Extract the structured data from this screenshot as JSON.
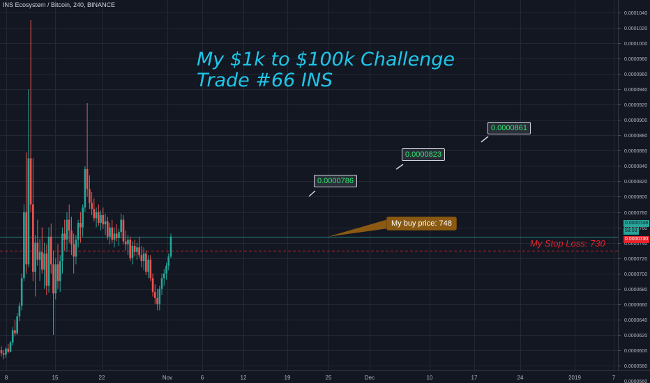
{
  "chart_data": {
    "type": "candlestick",
    "title": "INS Ecosystem / Bitcoin, 240, BINANCE",
    "headline": [
      "My $1k to $100k Challenge",
      "Trade #66   INS"
    ],
    "x_ticks": [
      "8",
      "15",
      "22",
      "Nov",
      "6",
      "12",
      "19",
      "25",
      "Dec",
      "10",
      "17",
      "24",
      "2019",
      "7"
    ],
    "y_ticks": [
      "0.0000560",
      "0.0000580",
      "0.0000600",
      "0.0000620",
      "0.0000640",
      "0.0000660",
      "0.0000680",
      "0.0000700",
      "0.0000720",
      "0.0000740",
      "0.0000760",
      "0.0000780",
      "0.0000800",
      "0.0000820",
      "0.0000840",
      "0.0000860",
      "0.0000880",
      "0.0000900",
      "0.0000920",
      "0.0000940",
      "0.0000960",
      "0.0000980",
      "0.0001000",
      "0.0001020",
      "0.0001040"
    ],
    "ylim": [
      5.48e-05,
      0.0001058
    ],
    "targets": [
      {
        "label": "0.0000786",
        "value": 7.86e-05
      },
      {
        "label": "0.0000823",
        "value": 8.23e-05
      },
      {
        "label": "0.0000861",
        "value": 8.61e-05
      }
    ],
    "buy": {
      "text": "My buy price:  748",
      "value": 7.48e-05
    },
    "stop": {
      "text": "My Stop Loss:  730",
      "value": 7.3e-05
    },
    "last_price_tag": "0.0000748",
    "countdown": "58:03",
    "stop_tag": "0.0000730",
    "colors": {
      "up": "#26a69a",
      "down": "#ef5350",
      "headline": "#1ec6e8",
      "target_text": "#2ee86e",
      "buy_box": "#8a5a12",
      "stop": "#e8232c",
      "last_price": "#26a69a",
      "background": "#131722",
      "grid": "#242836"
    },
    "grid": true,
    "candles_approx": [
      [
        6e-05,
        6.05e-05,
        5.92e-05,
        5.96e-05
      ],
      [
        5.96e-05,
        6e-05,
        5.88e-05,
        5.94e-05
      ],
      [
        5.94e-05,
        6.04e-05,
        5.9e-05,
        6.02e-05
      ],
      [
        6.02e-05,
        6.08e-05,
        5.96e-05,
        5.98e-05
      ],
      [
        5.98e-05,
        6.12e-05,
        5.97e-05,
        6.1e-05
      ],
      [
        6.1e-05,
        6.3e-05,
        6.06e-05,
        6.26e-05
      ],
      [
        6.26e-05,
        6.4e-05,
        6.18e-05,
        6.22e-05
      ],
      [
        6.22e-05,
        6.48e-05,
        6.2e-05,
        6.44e-05
      ],
      [
        6.44e-05,
        6.62e-05,
        6.38e-05,
        6.58e-05
      ],
      [
        6.58e-05,
        7e-05,
        6.52e-05,
        6.94e-05
      ],
      [
        6.94e-05,
        7.9e-05,
        6.9e-05,
        7.8e-05
      ],
      [
        7.8e-05,
        8.58e-05,
        7e-05,
        7.12e-05
      ],
      [
        7.12e-05,
        9.4e-05,
        7.08e-05,
        8.5e-05
      ],
      [
        8.5e-05,
        0.000103,
        7.8e-05,
        7.9e-05
      ],
      [
        7.9e-05,
        8.5e-05,
        6.9e-05,
        7.02e-05
      ],
      [
        7.02e-05,
        7.5e-05,
        6.7e-05,
        7.4e-05
      ],
      [
        7.4e-05,
        7.7e-05,
        7.1e-05,
        7.18e-05
      ],
      [
        7.18e-05,
        7.45e-05,
        6.9e-05,
        7.28e-05
      ],
      [
        7.28e-05,
        7.6e-05,
        7e-05,
        7.05e-05
      ],
      [
        7.05e-05,
        7.4e-05,
        6.8e-05,
        7.26e-05
      ],
      [
        7.26e-05,
        7.38e-05,
        6.72e-05,
        6.84e-05
      ],
      [
        6.84e-05,
        7.6e-05,
        6.75e-05,
        7.48e-05
      ],
      [
        7.48e-05,
        7.65e-05,
        7e-05,
        7.12e-05
      ],
      [
        7.12e-05,
        7.3e-05,
        6.2e-05,
        6.74e-05
      ],
      [
        6.74e-05,
        7.2e-05,
        6.66e-05,
        7.12e-05
      ],
      [
        7.12e-05,
        7.38e-05,
        6.8e-05,
        6.9e-05
      ],
      [
        6.9e-05,
        7.24e-05,
        6.76e-05,
        7.16e-05
      ],
      [
        7.16e-05,
        7.6e-05,
        7e-05,
        7.52e-05
      ],
      [
        7.52e-05,
        7.7e-05,
        7.3e-05,
        7.44e-05
      ],
      [
        7.44e-05,
        7.8e-05,
        7.28e-05,
        7.7e-05
      ],
      [
        7.7e-05,
        7.9e-05,
        7.4e-05,
        7.56e-05
      ],
      [
        7.56e-05,
        7.74e-05,
        7.24e-05,
        7.38e-05
      ],
      [
        7.38e-05,
        7.52e-05,
        7e-05,
        7.22e-05
      ],
      [
        7.22e-05,
        7.5e-05,
        7.12e-05,
        7.44e-05
      ],
      [
        7.44e-05,
        7.7e-05,
        7.34e-05,
        7.66e-05
      ],
      [
        7.66e-05,
        7.8e-05,
        7.4e-05,
        7.6e-05
      ],
      [
        7.6e-05,
        7.9e-05,
        7.48e-05,
        7.86e-05
      ],
      [
        7.86e-05,
        8.4e-05,
        7.8e-05,
        8.36e-05
      ],
      [
        8.36e-05,
        9.22e-05,
        8e-05,
        8.1e-05
      ],
      [
        8.1e-05,
        8.28e-05,
        7.84e-05,
        7.92e-05
      ],
      [
        7.92e-05,
        8.06e-05,
        7.76e-05,
        7.84e-05
      ],
      [
        7.84e-05,
        7.98e-05,
        7.68e-05,
        7.72e-05
      ],
      [
        7.72e-05,
        7.86e-05,
        7.6e-05,
        7.8e-05
      ],
      [
        7.8e-05,
        7.9e-05,
        7.62e-05,
        7.66e-05
      ],
      [
        7.66e-05,
        7.82e-05,
        7.56e-05,
        7.76e-05
      ],
      [
        7.76e-05,
        7.86e-05,
        7.58e-05,
        7.64e-05
      ],
      [
        7.64e-05,
        7.78e-05,
        7.5e-05,
        7.68e-05
      ],
      [
        7.68e-05,
        7.74e-05,
        7.44e-05,
        7.48e-05
      ],
      [
        7.48e-05,
        7.66e-05,
        7.38e-05,
        7.6e-05
      ],
      [
        7.6e-05,
        7.7e-05,
        7.4e-05,
        7.44e-05
      ],
      [
        7.44e-05,
        7.6e-05,
        7.34e-05,
        7.52e-05
      ],
      [
        7.52e-05,
        7.64e-05,
        7.42e-05,
        7.46e-05
      ],
      [
        7.46e-05,
        7.58e-05,
        7.36e-05,
        7.54e-05
      ],
      [
        7.54e-05,
        7.78e-05,
        7.46e-05,
        7.7e-05
      ],
      [
        7.7e-05,
        7.76e-05,
        7.38e-05,
        7.42e-05
      ],
      [
        7.42e-05,
        7.56e-05,
        7.3e-05,
        7.38e-05
      ],
      [
        7.38e-05,
        7.5e-05,
        7.24e-05,
        7.44e-05
      ],
      [
        7.44e-05,
        7.48e-05,
        7.16e-05,
        7.2e-05
      ],
      [
        7.2e-05,
        7.42e-05,
        7.12e-05,
        7.36e-05
      ],
      [
        7.36e-05,
        7.44e-05,
        7.22e-05,
        7.28e-05
      ],
      [
        7.28e-05,
        7.4e-05,
        7.18e-05,
        7.34e-05
      ],
      [
        7.34e-05,
        7.48e-05,
        7.2e-05,
        7.24e-05
      ],
      [
        7.24e-05,
        7.36e-05,
        7.08e-05,
        7.16e-05
      ],
      [
        7.16e-05,
        7.34e-05,
        7.04e-05,
        7.26e-05
      ],
      [
        7.26e-05,
        7.3e-05,
        6.98e-05,
        7.02e-05
      ],
      [
        7.02e-05,
        7.24e-05,
        6.94e-05,
        7.18e-05
      ],
      [
        7.18e-05,
        7.24e-05,
        6.9e-05,
        6.94e-05
      ],
      [
        6.94e-05,
        7e-05,
        6.7e-05,
        6.76e-05
      ],
      [
        6.76e-05,
        6.86e-05,
        6.6e-05,
        6.68e-05
      ],
      [
        6.68e-05,
        6.8e-05,
        6.52e-05,
        6.6e-05
      ],
      [
        6.6e-05,
        6.84e-05,
        6.52e-05,
        6.8e-05
      ],
      [
        6.8e-05,
        7e-05,
        6.72e-05,
        6.94e-05
      ],
      [
        6.94e-05,
        7.06e-05,
        6.84e-05,
        7e-05
      ],
      [
        7e-05,
        7.14e-05,
        6.92e-05,
        7.1e-05
      ],
      [
        7.1e-05,
        7.26e-05,
        7.04e-05,
        7.22e-05
      ],
      [
        7.22e-05,
        7.52e-05,
        7.2e-05,
        7.48e-05
      ]
    ]
  }
}
